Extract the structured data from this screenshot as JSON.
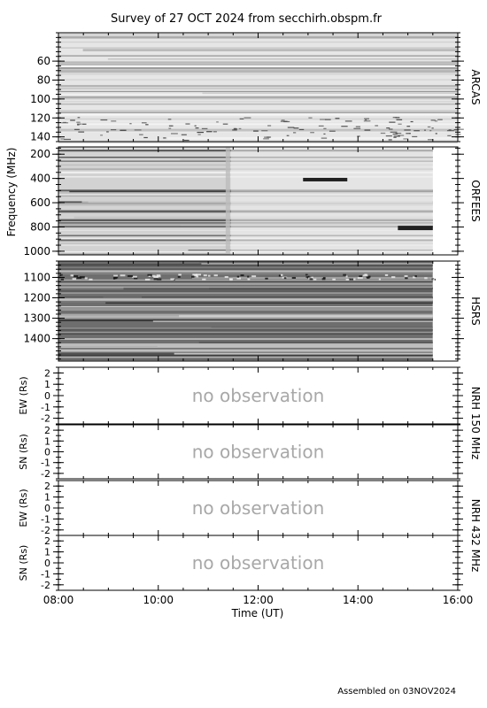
{
  "title": "Survey of 27 OCT 2024 from secchirh.obspm.fr",
  "footer": "Assembled on 03NOV2024",
  "no_observation_text": "no observation",
  "chart_data": {
    "type": "heatmap",
    "x_axis": {
      "label": "Time (UT)",
      "range_hours": [
        8,
        16
      ],
      "ticks": [
        "08:00",
        "10:00",
        "12:00",
        "14:00",
        "16:00"
      ],
      "tick_hours": [
        8,
        10,
        12,
        14,
        16
      ],
      "minor_step_hours": 0.5
    },
    "spectra_ylabel": "Frequency (MHz)",
    "spectra": [
      {
        "name": "ARCAS",
        "range": [
          30,
          145
        ],
        "ticks": [
          60,
          80,
          100,
          120,
          140
        ],
        "minor_step": 5,
        "data_end_hour": 16.0,
        "background": "#e6e6e6"
      },
      {
        "name": "ORFEES",
        "range": [
          140,
          1030
        ],
        "ticks": [
          200,
          400,
          600,
          800,
          1000
        ],
        "minor_step": 50,
        "data_end_hour": 15.5,
        "background": "#d2d2d2"
      },
      {
        "name": "HSRS",
        "range": [
          1020,
          1510
        ],
        "ticks": [
          1100,
          1200,
          1300,
          1400
        ],
        "minor_step": 20,
        "data_end_hour": 15.5,
        "background": "#6e6e6e"
      }
    ],
    "nrh": [
      {
        "name": "NRH 150 MHz",
        "panels": [
          {
            "ylabel": "EW (Rs)",
            "range": [
              -2.5,
              2.5
            ],
            "ticks": [
              -2,
              -1,
              0,
              1,
              2
            ],
            "status": "no observation"
          },
          {
            "ylabel": "SN (Rs)",
            "range": [
              -2.5,
              2.5
            ],
            "ticks": [
              -2,
              -1,
              0,
              1,
              2
            ],
            "status": "no observation"
          }
        ]
      },
      {
        "name": "NRH 432 MHz",
        "panels": [
          {
            "ylabel": "EW (Rs)",
            "range": [
              -2.5,
              2.5
            ],
            "ticks": [
              -2,
              -1,
              0,
              1,
              2
            ],
            "status": "no observation"
          },
          {
            "ylabel": "SN (Rs)",
            "range": [
              -2.5,
              2.5
            ],
            "ticks": [
              -2,
              -1,
              0,
              1,
              2
            ],
            "status": "no observation"
          }
        ]
      }
    ]
  }
}
